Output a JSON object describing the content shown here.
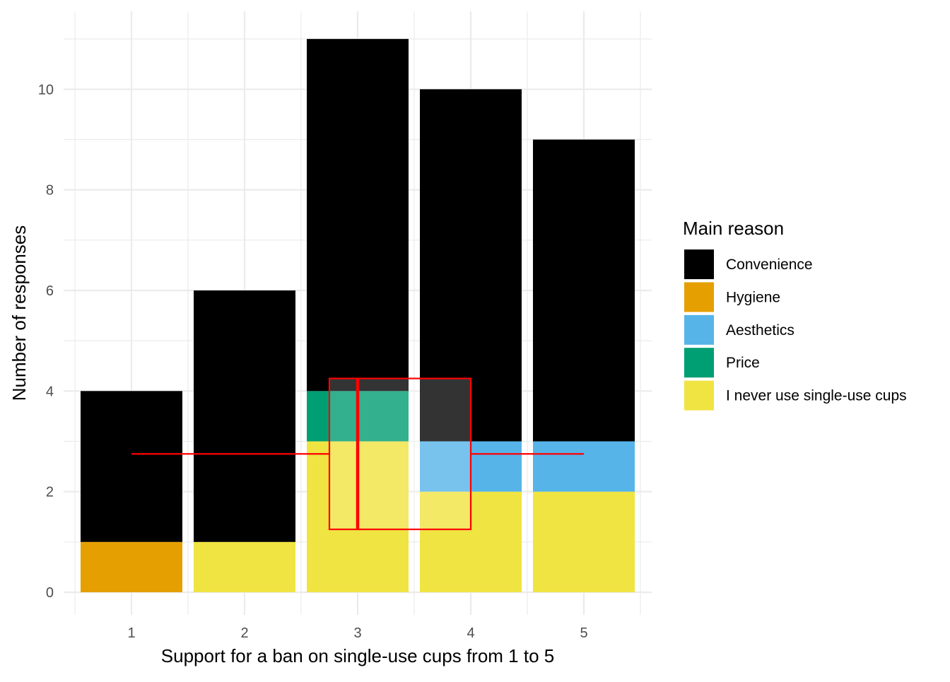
{
  "chart_data": {
    "type": "bar",
    "stacked": true,
    "categories": [
      "1",
      "2",
      "3",
      "4",
      "5"
    ],
    "xlabel": "Support for a ban on single-use cups from 1 to 5",
    "ylabel": "Number of responses",
    "ylim": [
      -0.45,
      11.55
    ],
    "yticks": [
      0,
      2,
      4,
      6,
      8,
      10
    ],
    "grid": true,
    "legend": {
      "title": "Main reason",
      "position": "right"
    },
    "series": [
      {
        "name": "I never use single-use cups",
        "color": "#F0E442",
        "values": [
          0,
          1,
          3,
          2,
          2
        ]
      },
      {
        "name": "Price",
        "color": "#009E73",
        "values": [
          0,
          0,
          1,
          0,
          0
        ]
      },
      {
        "name": "Aesthetics",
        "color": "#56B4E9",
        "values": [
          0,
          0,
          0,
          1,
          1
        ]
      },
      {
        "name": "Hygiene",
        "color": "#E69F00",
        "values": [
          1,
          0,
          0,
          0,
          0
        ]
      },
      {
        "name": "Convenience",
        "color": "#000000",
        "values": [
          3,
          5,
          7,
          7,
          6
        ]
      }
    ],
    "legend_order": [
      "Convenience",
      "Hygiene",
      "Aesthetics",
      "Price",
      "I never use single-use cups"
    ],
    "boxplot_overlay": {
      "color": "#FF0000",
      "whisker_low": 1,
      "q1": 2.75,
      "median": 3,
      "q3": 4,
      "whisker_high": 5,
      "y_position": 2.75
    }
  }
}
